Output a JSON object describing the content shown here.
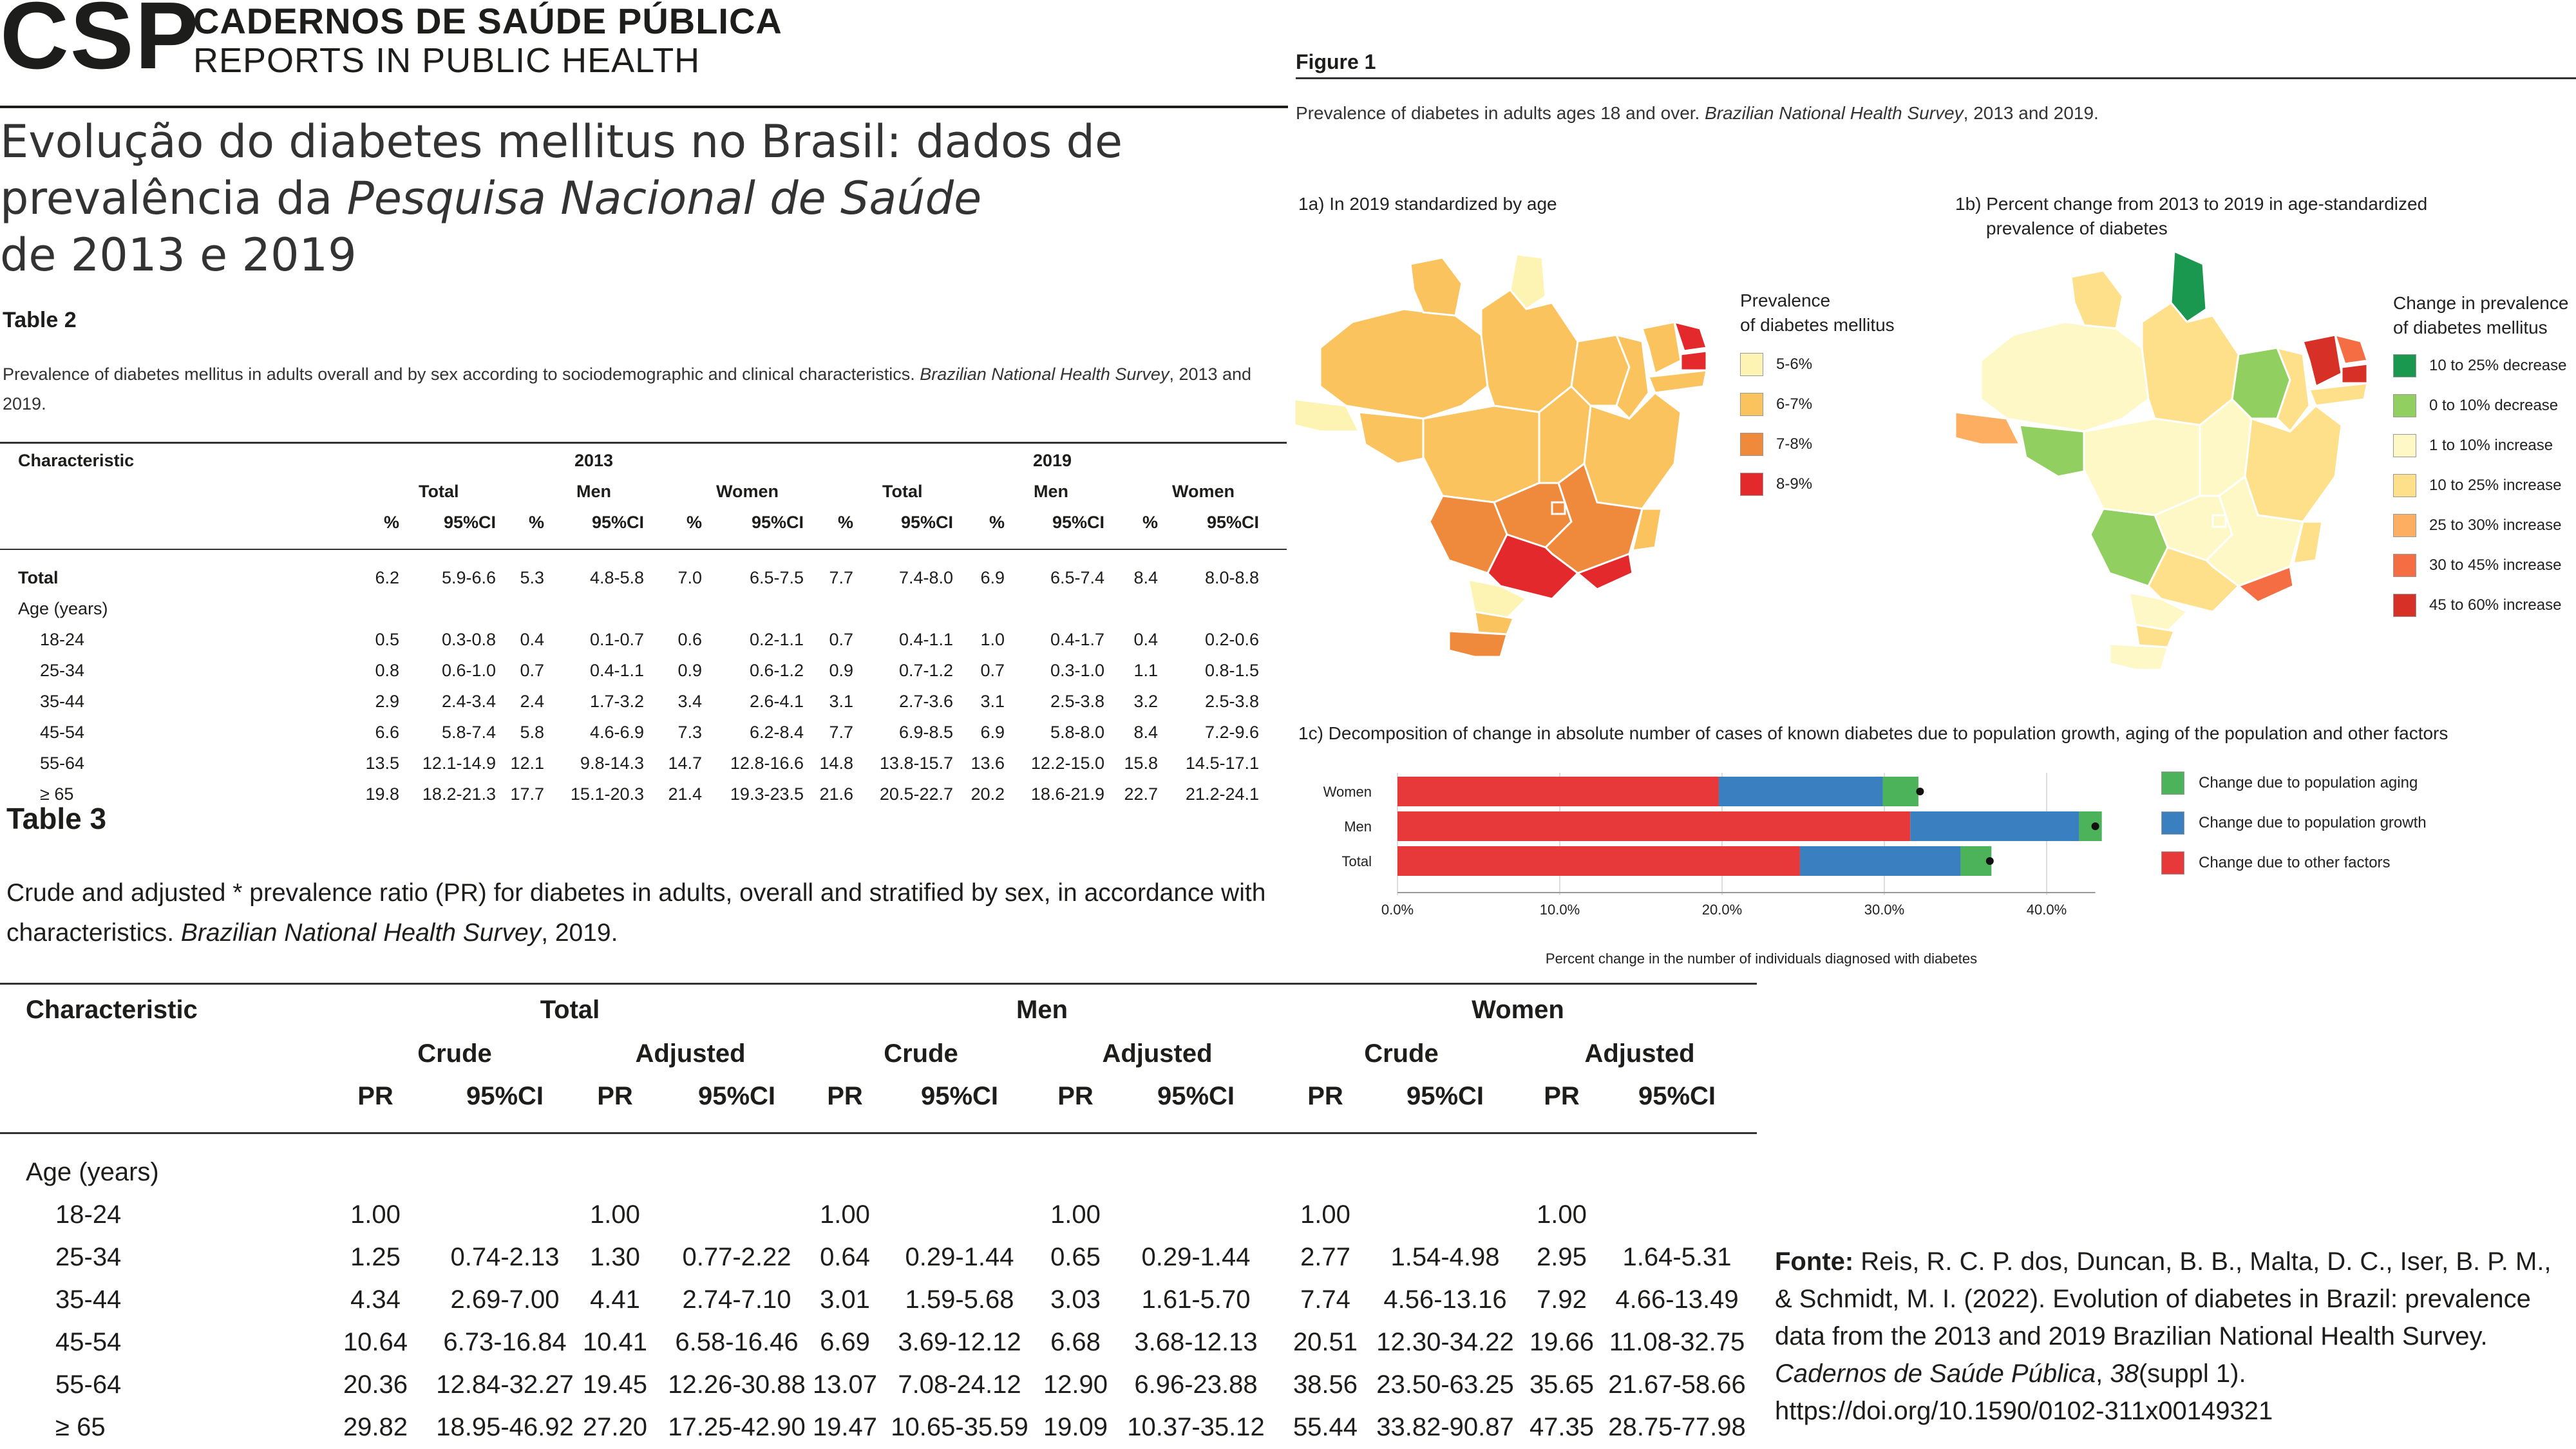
{
  "header": {
    "logo": "CSP",
    "journal_name": "CADERNOS DE SAÚDE PÚBLICA",
    "journal_subtitle": "REPORTS IN PUBLIC HEALTH"
  },
  "article_title": {
    "line1": "Evolução do diabetes mellitus no Brasil: dados de",
    "line2_pre": "prevalência da ",
    "line2_italic": "Pesquisa Nacional de Saúde",
    "line3": "de 2013 e 2019"
  },
  "table2": {
    "label": "Table 2",
    "caption_pre": "Prevalence of diabetes mellitus in adults overall and by sex according to sociodemographic and clinical characteristics. ",
    "caption_italic": "Brazilian National Health Survey",
    "caption_post": ", 2013 and 2019.",
    "col_characteristic": "Characteristic",
    "year_2013": "2013",
    "year_2019": "2019",
    "groups": [
      "Total",
      "Men",
      "Women",
      "Total",
      "Men",
      "Women"
    ],
    "sub_pct": "%",
    "sub_ci": "95%CI",
    "rows": [
      {
        "label": "Total",
        "bold": true,
        "indent": false,
        "cells": [
          "6.2",
          "5.9-6.6",
          "5.3",
          "4.8-5.8",
          "7.0",
          "6.5-7.5",
          "7.7",
          "7.4-8.0",
          "6.9",
          "6.5-7.4",
          "8.4",
          "8.0-8.8"
        ]
      },
      {
        "label": "Age (years)",
        "bold": false,
        "indent": false,
        "cells": []
      },
      {
        "label": "18-24",
        "bold": false,
        "indent": true,
        "cells": [
          "0.5",
          "0.3-0.8",
          "0.4",
          "0.1-0.7",
          "0.6",
          "0.2-1.1",
          "0.7",
          "0.4-1.1",
          "1.0",
          "0.4-1.7",
          "0.4",
          "0.2-0.6"
        ]
      },
      {
        "label": "25-34",
        "bold": false,
        "indent": true,
        "cells": [
          "0.8",
          "0.6-1.0",
          "0.7",
          "0.4-1.1",
          "0.9",
          "0.6-1.2",
          "0.9",
          "0.7-1.2",
          "0.7",
          "0.3-1.0",
          "1.1",
          "0.8-1.5"
        ]
      },
      {
        "label": "35-44",
        "bold": false,
        "indent": true,
        "cells": [
          "2.9",
          "2.4-3.4",
          "2.4",
          "1.7-3.2",
          "3.4",
          "2.6-4.1",
          "3.1",
          "2.7-3.6",
          "3.1",
          "2.5-3.8",
          "3.2",
          "2.5-3.8"
        ]
      },
      {
        "label": "45-54",
        "bold": false,
        "indent": true,
        "cells": [
          "6.6",
          "5.8-7.4",
          "5.8",
          "4.6-6.9",
          "7.3",
          "6.2-8.4",
          "7.7",
          "6.9-8.5",
          "6.9",
          "5.8-8.0",
          "8.4",
          "7.2-9.6"
        ]
      },
      {
        "label": "55-64",
        "bold": false,
        "indent": true,
        "cells": [
          "13.5",
          "12.1-14.9",
          "12.1",
          "9.8-14.3",
          "14.7",
          "12.8-16.6",
          "14.8",
          "13.8-15.7",
          "13.6",
          "12.2-15.0",
          "15.8",
          "14.5-17.1"
        ]
      },
      {
        "label": "≥ 65",
        "bold": false,
        "indent": true,
        "cells": [
          "19.8",
          "18.2-21.3",
          "17.7",
          "15.1-20.3",
          "21.4",
          "19.3-23.5",
          "21.6",
          "20.5-22.7",
          "20.2",
          "18.6-21.9",
          "22.7",
          "21.2-24.1"
        ]
      }
    ]
  },
  "table3": {
    "label": "Table 3",
    "caption_line1": "Crude and adjusted * prevalence ratio (PR) for diabetes in adults, overall and stratified by sex, in accordance with",
    "caption_line2_pre": "characteristics. ",
    "caption_line2_italic": "Brazilian National Health Survey",
    "caption_line2_post": ", 2019.",
    "col_characteristic": "Characteristic",
    "groups": [
      "Total",
      "Men",
      "Women"
    ],
    "subgroups": [
      "Crude",
      "Adjusted"
    ],
    "sub_pr": "PR",
    "sub_ci": "95%CI",
    "section_label": "Age (years)",
    "rows": [
      {
        "label": "18-24",
        "cells": [
          "1.00",
          "",
          "1.00",
          "",
          "1.00",
          "",
          "1.00",
          "",
          "1.00",
          "",
          "1.00",
          ""
        ]
      },
      {
        "label": "25-34",
        "cells": [
          "1.25",
          "0.74-2.13",
          "1.30",
          "0.77-2.22",
          "0.64",
          "0.29-1.44",
          "0.65",
          "0.29-1.44",
          "2.77",
          "1.54-4.98",
          "2.95",
          "1.64-5.31"
        ]
      },
      {
        "label": "35-44",
        "cells": [
          "4.34",
          "2.69-7.00",
          "4.41",
          "2.74-7.10",
          "3.01",
          "1.59-5.68",
          "3.03",
          "1.61-5.70",
          "7.74",
          "4.56-13.16",
          "7.92",
          "4.66-13.49"
        ]
      },
      {
        "label": "45-54",
        "cells": [
          "10.64",
          "6.73-16.84",
          "10.41",
          "6.58-16.46",
          "6.69",
          "3.69-12.12",
          "6.68",
          "3.68-12.13",
          "20.51",
          "12.30-34.22",
          "19.66",
          "11.08-32.75"
        ]
      },
      {
        "label": "55-64",
        "cells": [
          "20.36",
          "12.84-32.27",
          "19.45",
          "12.26-30.88",
          "13.07",
          "7.08-24.12",
          "12.90",
          "6.96-23.88",
          "38.56",
          "23.50-63.25",
          "35.65",
          "21.67-58.66"
        ]
      },
      {
        "label": "≥ 65",
        "cells": [
          "29.82",
          "18.95-46.92",
          "27.20",
          "17.25-42.90",
          "19.47",
          "10.65-35.59",
          "19.09",
          "10.37-35.12",
          "55.44",
          "33.82-90.87",
          "47.35",
          "28.75-77.98"
        ]
      }
    ]
  },
  "figure1": {
    "label": "Figure 1",
    "caption_pre": "Prevalence of diabetes in adults ages 18 and over. ",
    "caption_italic": "Brazilian National Health Survey",
    "caption_post": ", 2013 and 2019.",
    "panel_a": {
      "title": "1a) In 2019 standardized by age",
      "legend_title_1": "Prevalence",
      "legend_title_2": "of diabetes mellitus",
      "legend": [
        {
          "label": "5-6%",
          "color": "#fdf3b3"
        },
        {
          "label": "6-7%",
          "color": "#fbc35e"
        },
        {
          "label": "7-8%",
          "color": "#ef8a3d"
        },
        {
          "label": "8-9%",
          "color": "#e3292b"
        }
      ]
    },
    "panel_b": {
      "title_1": "1b) Percent change from 2013 to 2019 in age-standardized",
      "title_2": "prevalence of diabetes",
      "legend_title_1": "Change in prevalence",
      "legend_title_2": "of diabetes mellitus",
      "legend": [
        {
          "label": "10 to 25% decrease",
          "color": "#1a9850"
        },
        {
          "label": "0 to 10% decrease",
          "color": "#91cf60"
        },
        {
          "label": "1 to 10% increase",
          "color": "#fdf8c6"
        },
        {
          "label": "10 to 25% increase",
          "color": "#fee08b"
        },
        {
          "label": "25 to 30% increase",
          "color": "#fdae61"
        },
        {
          "label": "30 to 45% increase",
          "color": "#f46d43"
        },
        {
          "label": "45 to 60% increase",
          "color": "#d73027"
        }
      ]
    },
    "panel_c": {
      "title": "1c) Decomposition of change in absolute number of cases of known diabetes due to population growth, aging of the population and other factors",
      "xlabel": "Percent change in the number of individuals diagnosed with diabetes"
    }
  },
  "chart_data": {
    "type": "bar",
    "orientation": "horizontal",
    "stacked": true,
    "categories": [
      "Women",
      "Men",
      "Total"
    ],
    "series": [
      {
        "name": "Change due to other factors",
        "color": "#e8393a",
        "values": [
          19.8,
          31.6,
          24.8
        ]
      },
      {
        "name": "Change due to population growth",
        "color": "#3a7fc0",
        "values": [
          10.1,
          10.4,
          9.9
        ]
      },
      {
        "name": "Change due to population aging",
        "color": "#4cb35a",
        "values": [
          2.2,
          1.4,
          1.9
        ]
      }
    ],
    "totals": [
      32.2,
      43.0,
      36.5
    ],
    "xticks": [
      "0.0%",
      "10.0%",
      "20.0%",
      "30.0%",
      "40.0%"
    ],
    "xlim": [
      0,
      43
    ],
    "xlabel": "Percent change in the number of individuals diagnosed with diabetes",
    "legend_order": [
      "Change due to population aging",
      "Change due to population growth",
      "Change due to other factors"
    ],
    "legend_position": "right",
    "grid": true
  },
  "source": {
    "label": "Fonte:",
    "text1": " Reis, R. C. P. dos, Duncan, B. B., Malta, D. C., Iser, B. P. M., & Schmidt, M. I. (2022). Evolution of diabetes in Brazil: prevalence data from the 2013 and 2019 Brazilian National Health Survey. ",
    "journal_italic": "Cadernos de Saúde Pública",
    "text2": ", ",
    "volume_italic": "38",
    "text3": "(suppl 1). https://doi.org/10.1590/0102-311x00149321"
  }
}
